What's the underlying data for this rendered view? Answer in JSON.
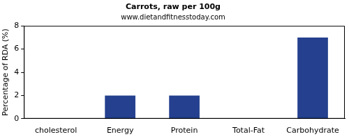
{
  "chart_data": {
    "type": "bar",
    "title": "Carrots, raw per 100g",
    "subtitle": "www.dietandfitnesstoday.com",
    "y_label": "Percentage of RDA (%)",
    "categories": [
      "cholesterol",
      "Energy",
      "Protein",
      "Total-Fat",
      "Carbohydrate"
    ],
    "values": [
      0,
      2,
      2,
      0,
      7
    ],
    "color": "#24408e",
    "ylim": [
      0,
      8
    ],
    "yticks": [
      0,
      2,
      4,
      6,
      8
    ],
    "grid": false
  }
}
